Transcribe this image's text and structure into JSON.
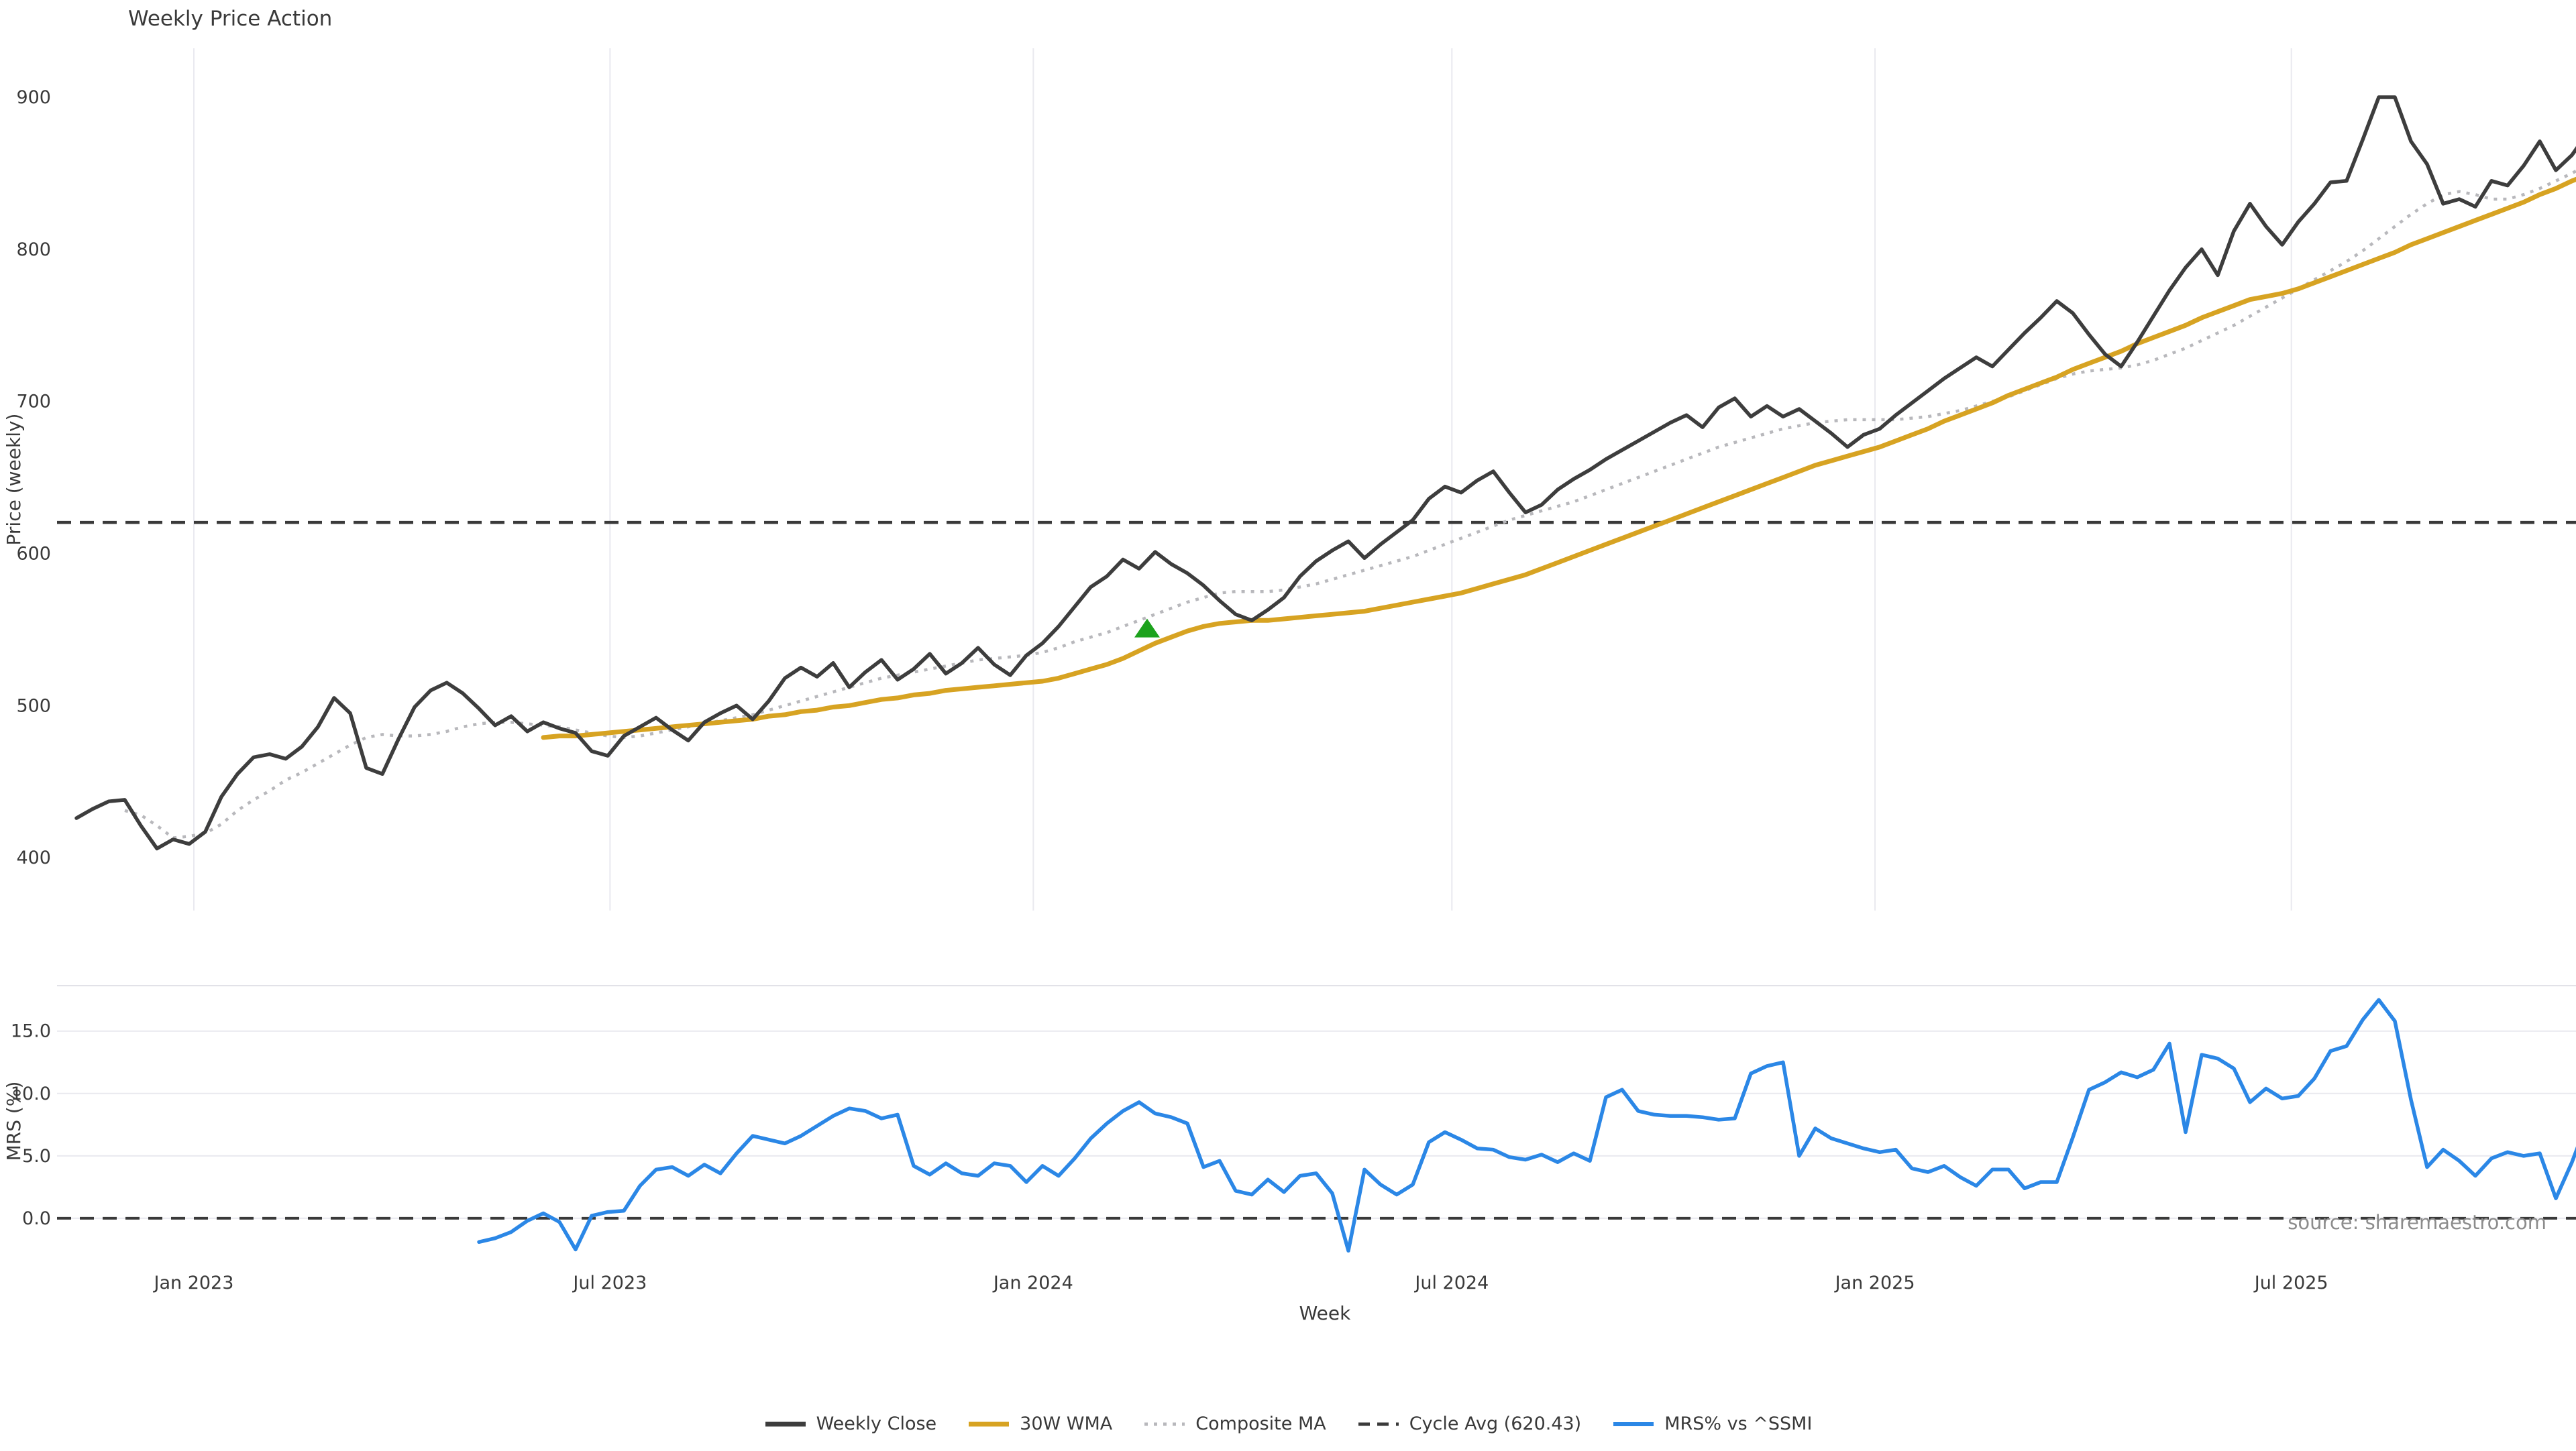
{
  "title": "Weekly Price Action",
  "source_note": "source: sharemaestro.com",
  "axes": {
    "price_ylabel": "Price (weekly)",
    "mrs_ylabel": "MRS (%)",
    "xlabel": "Week"
  },
  "colors": {
    "weekly_close": "#3d3d3d",
    "wma_30w": "#d7a322",
    "composite_ma": "#b8b8bc",
    "cycle_avg": "#3a3a3a",
    "mrs": "#2b87e6",
    "signal_marker": "#1ca21c",
    "grid": "#e9e9ef",
    "panel_border": "#e2e2e8",
    "tick_text": "#3a3a3a",
    "source_text": "#8c8c8c",
    "background": "#ffffff"
  },
  "legend": {
    "items": [
      {
        "label": "Weekly Close",
        "swatch": "solid",
        "color": "#3d3d3d",
        "width": 7
      },
      {
        "label": "30W WMA",
        "swatch": "solid",
        "color": "#d7a322",
        "width": 7
      },
      {
        "label": "Composite MA",
        "swatch": "dotted",
        "color": "#b8b8bc",
        "width": 5
      },
      {
        "label": "Cycle Avg (620.43)",
        "swatch": "dashed",
        "color": "#3a3a3a",
        "width": 5
      },
      {
        "label": "MRS% vs ^SSMI",
        "swatch": "solid",
        "color": "#2b87e6",
        "width": 6
      }
    ]
  },
  "chart_data": [
    {
      "type": "line",
      "panel": "price",
      "title": "Weekly Price Action",
      "ylabel": "Price (weekly)",
      "ylim": [
        365.2,
        932.2
      ],
      "yticks": [
        400,
        500,
        600,
        700,
        800,
        900
      ],
      "grid": "vertical",
      "x_start_date": "2022-11-11",
      "x_interval_days": 7,
      "x_ticks": [
        {
          "label": "Jan 2023",
          "week": 7.29
        },
        {
          "label": "Jul 2023",
          "week": 33.14
        },
        {
          "label": "Jan 2024",
          "week": 59.43
        },
        {
          "label": "Jul 2024",
          "week": 85.43
        },
        {
          "label": "Jan 2025",
          "week": 111.71
        },
        {
          "label": "Jul 2025",
          "week": 137.57
        }
      ],
      "cycle_avg": 620.43,
      "marker": {
        "shape": "triangle-up",
        "week": 66.5,
        "value": 551
      },
      "series": [
        {
          "name": "Weekly Close",
          "style": "solid",
          "start_week": 0,
          "values": [
            426,
            432,
            437,
            438,
            421,
            406,
            412,
            409,
            417,
            440,
            455,
            466,
            468,
            465,
            473,
            486,
            505,
            495,
            459,
            455,
            478,
            499,
            510,
            515,
            508,
            498,
            487,
            493,
            483,
            489,
            485,
            482,
            470,
            467,
            480,
            486,
            492,
            484,
            477,
            489,
            495,
            500,
            491,
            503,
            518,
            525,
            519,
            528,
            512,
            522,
            530,
            517,
            524,
            534,
            521,
            528,
            538,
            527,
            520,
            533,
            541,
            552,
            565,
            578,
            585,
            596,
            590,
            601,
            593,
            587,
            579,
            569,
            560,
            556,
            563,
            571,
            585,
            595,
            602,
            608,
            597,
            606,
            614,
            622,
            636,
            644,
            640,
            648,
            654,
            640,
            627,
            632,
            642,
            649,
            655,
            662,
            668,
            674,
            680,
            686,
            691,
            683,
            696,
            702,
            690,
            697,
            690,
            695,
            687,
            679,
            670,
            678,
            682,
            691,
            699,
            707,
            715,
            722,
            729,
            723,
            734,
            745,
            755,
            766,
            758,
            744,
            731,
            723,
            739,
            756,
            773,
            788,
            800,
            783,
            812,
            830,
            815,
            803,
            818,
            830,
            844,
            845,
            872,
            900,
            900,
            871,
            856,
            830,
            833,
            828,
            845,
            842,
            855,
            871,
            852,
            862,
            877
          ]
        },
        {
          "name": "30W WMA",
          "style": "solid",
          "start_week": 29,
          "values": [
            479,
            480,
            480,
            481,
            482,
            483,
            484,
            485,
            486,
            487,
            488,
            489,
            490,
            491,
            493,
            494,
            496,
            497,
            499,
            500,
            502,
            504,
            505,
            507,
            508,
            510,
            511,
            512,
            513,
            514,
            515,
            516,
            518,
            521,
            524,
            527,
            531,
            536,
            541,
            545,
            549,
            552,
            554,
            555,
            556,
            556,
            557,
            558,
            559,
            560,
            561,
            562,
            564,
            566,
            568,
            570,
            572,
            574,
            577,
            580,
            583,
            586,
            590,
            594,
            598,
            602,
            606,
            610,
            614,
            618,
            622,
            626,
            630,
            634,
            638,
            642,
            646,
            650,
            654,
            658,
            661,
            664,
            667,
            670,
            674,
            678,
            682,
            687,
            691,
            695,
            699,
            704,
            708,
            712,
            716,
            721,
            725,
            729,
            733,
            738,
            742,
            746,
            750,
            755,
            759,
            763,
            767,
            769,
            771,
            774,
            778,
            782,
            786,
            790,
            794,
            798,
            803,
            807,
            811,
            815,
            819,
            823,
            827,
            831,
            836,
            840,
            845,
            849
          ]
        },
        {
          "name": "Composite MA",
          "style": "dotted",
          "start_week": 3,
          "values": [
            431,
            428,
            421,
            413,
            414,
            416,
            422,
            431,
            438,
            444,
            451,
            456,
            462,
            468,
            474,
            479,
            481,
            480,
            480,
            481,
            483,
            486,
            488,
            489,
            489,
            488,
            487,
            486,
            484,
            482,
            480,
            479,
            480,
            482,
            484,
            486,
            488,
            490,
            492,
            494,
            497,
            500,
            503,
            506,
            509,
            512,
            515,
            518,
            520,
            522,
            524,
            526,
            528,
            530,
            531,
            532,
            533,
            535,
            538,
            542,
            545,
            548,
            552,
            556,
            560,
            564,
            568,
            571,
            574,
            575,
            575,
            575,
            576,
            578,
            580,
            583,
            586,
            589,
            592,
            595,
            598,
            602,
            606,
            610,
            614,
            618,
            622,
            625,
            628,
            631,
            634,
            638,
            642,
            646,
            650,
            654,
            658,
            662,
            666,
            670,
            673,
            676,
            679,
            682,
            684,
            686,
            687,
            688,
            688,
            688,
            688,
            689,
            690,
            692,
            694,
            697,
            700,
            703,
            707,
            711,
            715,
            718,
            720,
            721,
            722,
            724,
            727,
            731,
            735,
            740,
            745,
            750,
            756,
            762,
            768,
            774,
            780,
            786,
            792,
            799,
            807,
            815,
            823,
            830,
            836,
            838,
            836,
            833,
            833,
            836,
            840,
            845,
            850,
            856
          ]
        }
      ]
    },
    {
      "type": "line",
      "panel": "mrs",
      "ylabel": "MRS (%)",
      "xlabel": "Week",
      "ylim": [
        -3.12,
        18.64
      ],
      "yticks": [
        0.0,
        5.0,
        10.0,
        15.0
      ],
      "ytick_format": "one_decimal",
      "grid": "horizontal",
      "zero_line": 0.0,
      "series": [
        {
          "name": "MRS% vs ^SSMI",
          "style": "solid",
          "start_week": 25,
          "values": [
            -1.9,
            -1.6,
            -1.1,
            -0.2,
            0.4,
            -0.3,
            -2.5,
            0.2,
            0.5,
            0.6,
            2.6,
            3.9,
            4.1,
            3.4,
            4.3,
            3.6,
            5.2,
            6.6,
            6.3,
            6.0,
            6.6,
            7.4,
            8.2,
            8.8,
            8.6,
            8.0,
            8.3,
            4.2,
            3.5,
            4.4,
            3.6,
            3.4,
            4.4,
            4.2,
            2.9,
            4.2,
            3.4,
            4.8,
            6.4,
            7.6,
            8.6,
            9.3,
            8.4,
            8.1,
            7.6,
            4.1,
            4.6,
            2.2,
            1.9,
            3.1,
            2.1,
            3.4,
            3.6,
            2.0,
            -2.6,
            3.9,
            2.7,
            1.9,
            2.7,
            6.1,
            6.9,
            6.3,
            5.6,
            5.5,
            4.9,
            4.7,
            5.1,
            4.5,
            5.2,
            4.6,
            9.7,
            10.3,
            8.6,
            8.3,
            8.2,
            8.2,
            8.1,
            7.9,
            8.0,
            11.6,
            12.2,
            12.5,
            5.0,
            7.2,
            6.4,
            6.0,
            5.6,
            5.3,
            5.5,
            4.0,
            3.7,
            4.2,
            3.3,
            2.6,
            3.9,
            3.9,
            2.4,
            2.9,
            2.9,
            6.5,
            10.3,
            10.9,
            11.7,
            11.3,
            11.9,
            14.0,
            6.9,
            13.1,
            12.8,
            12.0,
            9.3,
            10.4,
            9.6,
            9.8,
            11.2,
            13.4,
            13.8,
            15.9,
            17.5,
            15.8,
            9.5,
            4.1,
            5.5,
            4.6,
            3.4,
            4.8,
            5.3,
            5.0,
            5.2,
            1.6,
            4.5,
            7.9
          ]
        }
      ]
    }
  ]
}
